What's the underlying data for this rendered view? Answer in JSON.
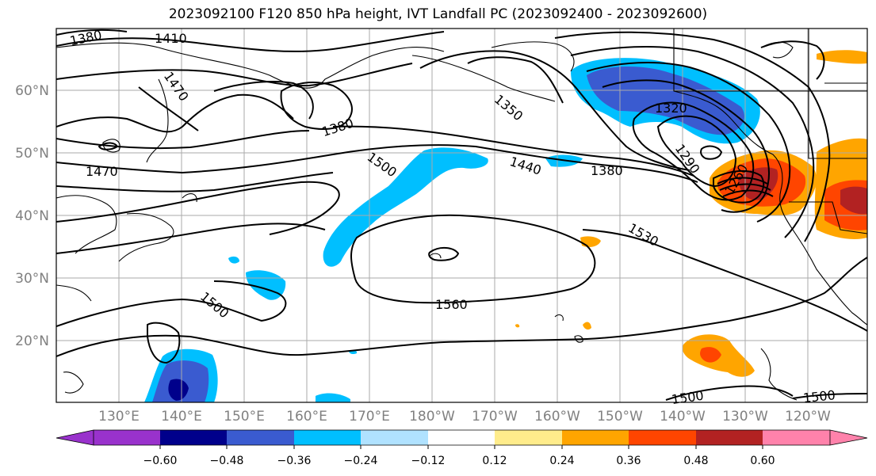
{
  "title": "2023092100 F120 850 hPa height, IVT Landfall PC (2023092400 - 2023092600)",
  "map": {
    "latitude_labels": [
      "60°N",
      "50°N",
      "40°N",
      "30°N",
      "20°N"
    ],
    "longitude_labels": [
      "130°E",
      "140°E",
      "150°E",
      "160°E",
      "170°E",
      "180°W",
      "170°W",
      "160°W",
      "150°W",
      "140°W",
      "130°W",
      "120°W"
    ],
    "contour_labels": [
      "1380",
      "1410",
      "1470",
      "1380",
      "1470",
      "1500",
      "1350",
      "1320",
      "1440",
      "1380",
      "1290",
      "1260",
      "1530",
      "1560",
      "1500",
      "1500",
      "1500"
    ]
  },
  "colorbar": {
    "ticks": [
      "−0.60",
      "−0.48",
      "−0.36",
      "−0.24",
      "−0.12",
      "0.12",
      "0.24",
      "0.36",
      "0.48",
      "0.60"
    ],
    "colors": [
      "#9932cc",
      "#00008b",
      "#3a5bd0",
      "#00bfff",
      "#b0e2ff",
      "#ffffff",
      "#ffec8b",
      "#ffa500",
      "#ff4500",
      "#b22222",
      "#ff82ab"
    ]
  }
}
